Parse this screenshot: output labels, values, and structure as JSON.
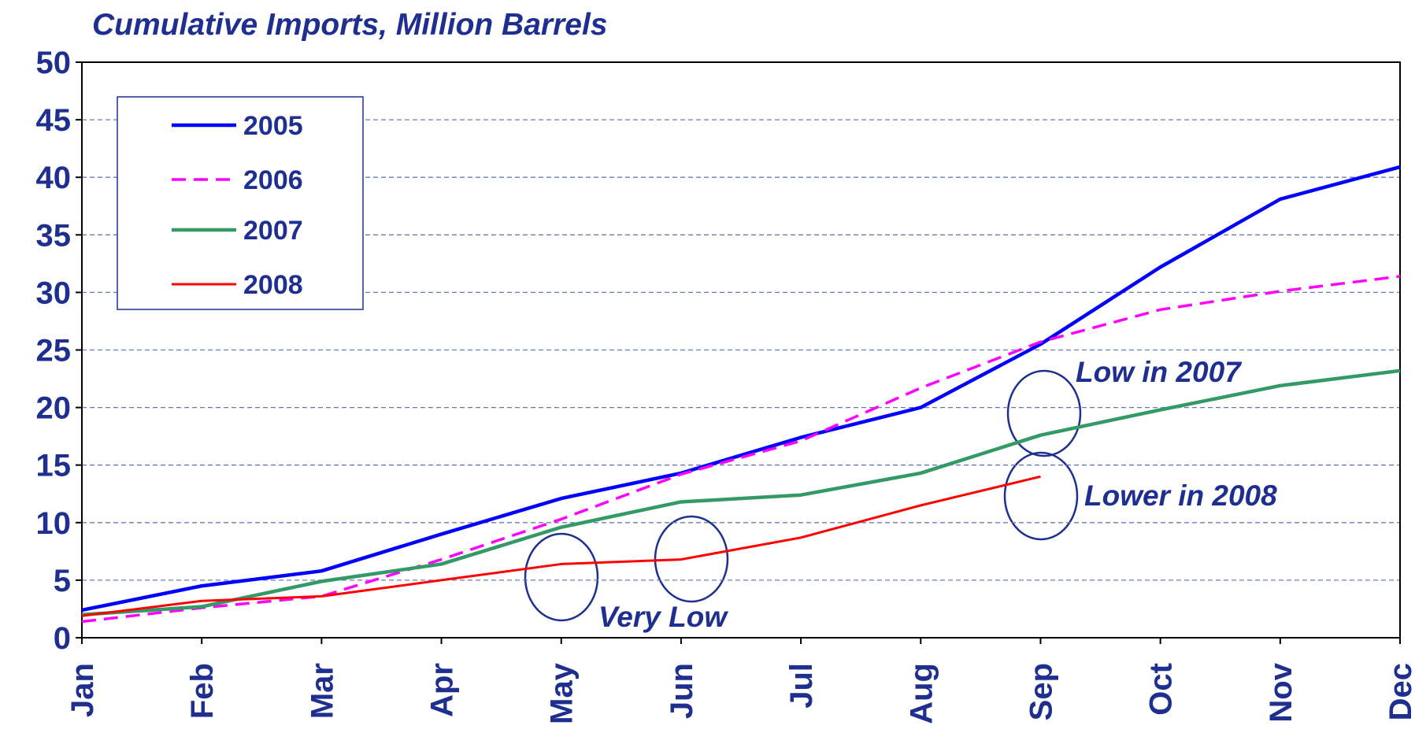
{
  "chart_data": {
    "type": "line",
    "title": "Cumulative Imports, Million Barrels",
    "categories": [
      "Jan",
      "Feb",
      "Mar",
      "Apr",
      "May",
      "Jun",
      "Jul",
      "Aug",
      "Sep",
      "Oct",
      "Nov",
      "Dec"
    ],
    "series": [
      {
        "name": "2005",
        "color": "#0000ff",
        "dashed": false,
        "values": [
          2.4,
          4.5,
          5.8,
          9.0,
          12.1,
          14.3,
          17.4,
          20.0,
          25.5,
          32.2,
          38.1,
          40.9
        ]
      },
      {
        "name": "2006",
        "color": "#ff00ff",
        "dashed": true,
        "values": [
          1.4,
          2.6,
          3.6,
          6.8,
          10.3,
          14.2,
          17.1,
          21.7,
          25.7,
          28.5,
          30.1,
          31.4
        ]
      },
      {
        "name": "2007",
        "color": "#339966",
        "dashed": false,
        "values": [
          2.0,
          2.7,
          4.9,
          6.4,
          9.6,
          11.8,
          12.4,
          14.3,
          17.6,
          19.8,
          21.9,
          23.2
        ]
      },
      {
        "name": "2008",
        "color": "#ff0000",
        "dashed": false,
        "values": [
          1.9,
          3.2,
          3.6,
          5.0,
          6.4,
          6.8,
          8.7,
          11.5,
          14.0,
          null,
          null,
          null
        ]
      }
    ],
    "ylim": [
      0,
      50
    ],
    "yticks": [
      0,
      5,
      10,
      15,
      20,
      25,
      30,
      35,
      40,
      45,
      50
    ],
    "grid": true,
    "legend": "top-left",
    "annotations": [
      "Low in 2007",
      "Lower in 2008",
      "Very Low"
    ]
  }
}
